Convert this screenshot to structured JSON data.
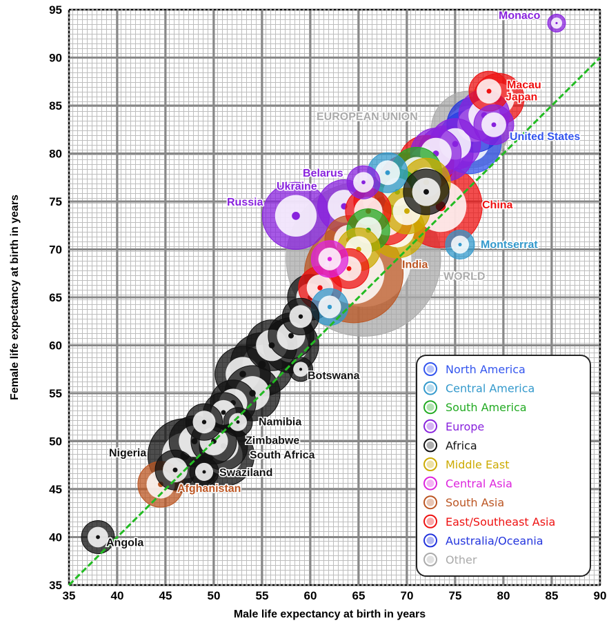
{
  "chart_data": {
    "type": "scatter",
    "xlabel": "Male life expectancy at birth in years",
    "ylabel": "Female life expectancy at birth in years",
    "xlim": [
      35,
      90
    ],
    "ylim": [
      35,
      95
    ],
    "x_ticks": [
      "35",
      "40",
      "45",
      "50",
      "55",
      "60",
      "65",
      "70",
      "75",
      "80",
      "85",
      "90"
    ],
    "y_ticks": [
      "35",
      "40",
      "45",
      "50",
      "55",
      "60",
      "65",
      "70",
      "75",
      "80",
      "85",
      "90",
      "95"
    ],
    "grid": true,
    "reference_line": {
      "label": "",
      "x": [
        35,
        90
      ],
      "y": [
        35,
        90
      ],
      "color": "#22bb22"
    },
    "legend_position": "bottom-right",
    "series": [
      {
        "name": "North America",
        "color": "#3355ee"
      },
      {
        "name": "Central America",
        "color": "#3399cc"
      },
      {
        "name": "South America",
        "color": "#22aa22"
      },
      {
        "name": "Europe",
        "color": "#8822dd"
      },
      {
        "name": "Africa",
        "color": "#111111"
      },
      {
        "name": "Middle East",
        "color": "#ccaa00"
      },
      {
        "name": "Central Asia",
        "color": "#dd22dd"
      },
      {
        "name": "South Asia",
        "color": "#bb5522"
      },
      {
        "name": "East/Southeast Asia",
        "color": "#ee1111"
      },
      {
        "name": "Australia/Oceania",
        "color": "#2233dd"
      },
      {
        "name": "Other",
        "color": "#aaaaaa"
      }
    ],
    "points": [
      {
        "label": "Monaco",
        "x": 85.5,
        "y": 93.6,
        "size": 1,
        "series": "Europe",
        "label_dx": -84,
        "label_dy": -6
      },
      {
        "label": "Macau",
        "x": 78.5,
        "y": 86.5,
        "size": 6,
        "series": "East/Southeast Asia",
        "label_dx": 26,
        "label_dy": -4
      },
      {
        "label": "Japan",
        "x": 79.5,
        "y": 85.7,
        "size": 10,
        "series": "East/Southeast Asia",
        "label_dx": 10,
        "label_dy": 2
      },
      {
        "label": "EUROPEAN UNION",
        "x": 76.5,
        "y": 82.5,
        "size": 24,
        "series": "Other",
        "label_dx": -222,
        "label_dy": -14
      },
      {
        "label": "United States",
        "x": 76.5,
        "y": 81.2,
        "size": 16,
        "series": "North America",
        "label_dx": 58,
        "label_dy": -3
      },
      {
        "label": "Belarus",
        "x": 65.5,
        "y": 77.0,
        "size": 4,
        "series": "Europe",
        "label_dx": -88,
        "label_dy": -8
      },
      {
        "label": "Ukraine",
        "x": 63.5,
        "y": 74.5,
        "size": 11,
        "series": "Europe",
        "label_dx": -98,
        "label_dy": -24
      },
      {
        "label": "Russia",
        "x": 58.5,
        "y": 73.5,
        "size": 18,
        "series": "Europe",
        "label_dx": -100,
        "label_dy": -15
      },
      {
        "label": "China",
        "x": 73.5,
        "y": 74.5,
        "size": 28,
        "series": "East/Southeast Asia",
        "label_dx": 60,
        "label_dy": 3
      },
      {
        "label": "Montserrat",
        "x": 75.5,
        "y": 70.5,
        "size": 3,
        "series": "Central America",
        "label_dx": 30,
        "label_dy": 5
      },
      {
        "label": "India",
        "x": 64.5,
        "y": 67.5,
        "size": 40,
        "series": "South Asia",
        "label_dx": 70,
        "label_dy": -8
      },
      {
        "label": "WORLD",
        "x": 65.5,
        "y": 69.0,
        "size": 100,
        "series": "Other",
        "label_dx": 116,
        "label_dy": 30
      },
      {
        "label": "Botswana",
        "x": 59.0,
        "y": 57.5,
        "size": 2,
        "series": "Africa",
        "label_dx": 10,
        "label_dy": 14
      },
      {
        "label": "Namibia",
        "x": 52.5,
        "y": 52.0,
        "size": 3,
        "series": "Africa",
        "label_dx": 30,
        "label_dy": 5
      },
      {
        "label": "Zimbabwe",
        "x": 51.0,
        "y": 49.5,
        "size": 9,
        "series": "Africa",
        "label_dx": 32,
        "label_dy": -3
      },
      {
        "label": "South Africa",
        "x": 51.0,
        "y": 48.5,
        "size": 15,
        "series": "Africa",
        "label_dx": 38,
        "label_dy": 4
      },
      {
        "label": "Swaziland",
        "x": 49.0,
        "y": 46.8,
        "size": 3,
        "series": "Africa",
        "label_dx": 22,
        "label_dy": 6
      },
      {
        "label": "Nigeria",
        "x": 47.0,
        "y": 48.5,
        "size": 22,
        "series": "Africa",
        "label_dx": -110,
        "label_dy": 1
      },
      {
        "label": "Afghanistan",
        "x": 44.5,
        "y": 45.5,
        "size": 8,
        "series": "South Asia",
        "label_dx": 24,
        "label_dy": 11
      },
      {
        "label": "Angola",
        "x": 38.0,
        "y": 40.0,
        "size": 4,
        "series": "Africa",
        "label_dx": 12,
        "label_dy": 13
      }
    ],
    "unlabeled_points": [
      {
        "x": 74,
        "y": 80,
        "size": 12,
        "series": "Europe"
      },
      {
        "x": 75,
        "y": 81,
        "size": 10,
        "series": "Europe"
      },
      {
        "x": 77,
        "y": 83,
        "size": 12,
        "series": "Australia/Oceania"
      },
      {
        "x": 78,
        "y": 84,
        "size": 10,
        "series": "Europe"
      },
      {
        "x": 79,
        "y": 83,
        "size": 6,
        "series": "Europe"
      },
      {
        "x": 72,
        "y": 79,
        "size": 12,
        "series": "East/Southeast Asia"
      },
      {
        "x": 73,
        "y": 80,
        "size": 10,
        "series": "Europe"
      },
      {
        "x": 71,
        "y": 78,
        "size": 10,
        "series": "South America"
      },
      {
        "x": 72,
        "y": 77,
        "size": 9,
        "series": "Middle East"
      },
      {
        "x": 70,
        "y": 77,
        "size": 12,
        "series": "East/Southeast Asia"
      },
      {
        "x": 68,
        "y": 78,
        "size": 6,
        "series": "Central America"
      },
      {
        "x": 69,
        "y": 76,
        "size": 8,
        "series": "South America"
      },
      {
        "x": 67,
        "y": 75,
        "size": 9,
        "series": "East/Southeast Asia"
      },
      {
        "x": 70,
        "y": 74,
        "size": 8,
        "series": "Middle East"
      },
      {
        "x": 69,
        "y": 72,
        "size": 12,
        "series": "Middle East"
      },
      {
        "x": 68,
        "y": 73,
        "size": 9,
        "series": "East/Southeast Asia"
      },
      {
        "x": 66,
        "y": 72,
        "size": 7,
        "series": "South America"
      },
      {
        "x": 64,
        "y": 71,
        "size": 9,
        "series": "South Asia"
      },
      {
        "x": 62,
        "y": 69,
        "size": 5,
        "series": "Central Asia"
      },
      {
        "x": 65,
        "y": 70,
        "size": 7,
        "series": "Middle East"
      },
      {
        "x": 66,
        "y": 74,
        "size": 8,
        "series": "East/Southeast Asia"
      },
      {
        "x": 72,
        "y": 76,
        "size": 8,
        "series": "Africa"
      },
      {
        "x": 64,
        "y": 68,
        "size": 6,
        "series": "East/Southeast Asia"
      },
      {
        "x": 61,
        "y": 66,
        "size": 7,
        "series": "East/Southeast Asia"
      },
      {
        "x": 60,
        "y": 65,
        "size": 8,
        "series": "Africa"
      },
      {
        "x": 62,
        "y": 64,
        "size": 5,
        "series": "Central America"
      },
      {
        "x": 59,
        "y": 63,
        "size": 5,
        "series": "Africa"
      },
      {
        "x": 58,
        "y": 61,
        "size": 8,
        "series": "Africa"
      },
      {
        "x": 56,
        "y": 60,
        "size": 10,
        "series": "Africa"
      },
      {
        "x": 58,
        "y": 60,
        "size": 12,
        "series": "Africa"
      },
      {
        "x": 55,
        "y": 58,
        "size": 16,
        "series": "Africa"
      },
      {
        "x": 53,
        "y": 57,
        "size": 12,
        "series": "Africa"
      },
      {
        "x": 54,
        "y": 55,
        "size": 12,
        "series": "Africa"
      },
      {
        "x": 52,
        "y": 54,
        "size": 8,
        "series": "Africa"
      },
      {
        "x": 51,
        "y": 53,
        "size": 6,
        "series": "Africa"
      },
      {
        "x": 49,
        "y": 52,
        "size": 5,
        "series": "Africa"
      },
      {
        "x": 48,
        "y": 50,
        "size": 10,
        "series": "Africa"
      },
      {
        "x": 50,
        "y": 50,
        "size": 8,
        "series": "Africa"
      },
      {
        "x": 46,
        "y": 47,
        "size": 6,
        "series": "Africa"
      }
    ]
  }
}
